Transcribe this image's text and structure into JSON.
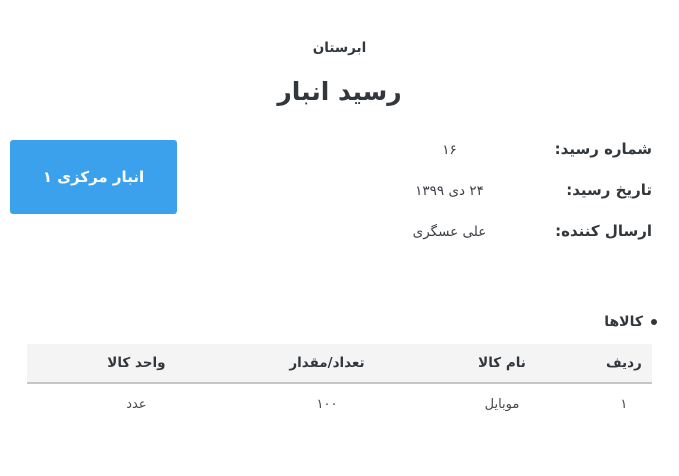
{
  "page": {
    "brand": "ابرستان",
    "title": "رسید انبار"
  },
  "warehouse_badge": {
    "label": "انبار مرکزی ۱",
    "color": "#3CA1EC"
  },
  "receipt_details": {
    "rows": [
      {
        "label": "شماره رسید:",
        "value": "۱۶"
      },
      {
        "label": "تاریخ رسید:",
        "value": "۲۴ دی ۱۳۹۹"
      },
      {
        "label": "ارسال کننده:",
        "value": "علی عسگری"
      }
    ]
  },
  "items_section": {
    "heading": "کالاها",
    "table": {
      "headers": [
        "ردیف",
        "نام کالا",
        "تعداد/مقدار",
        "واحد کالا"
      ],
      "rows": [
        {
          "row_no": "۱",
          "name": "موبایل",
          "qty": "۱۰۰",
          "unit": "عدد"
        }
      ]
    }
  },
  "colors": {
    "text": "#32373C",
    "badge_blue": "#3CA1EC",
    "table_header_bg": "#F4F4F4",
    "table_header_border": "#C6C6C6"
  }
}
